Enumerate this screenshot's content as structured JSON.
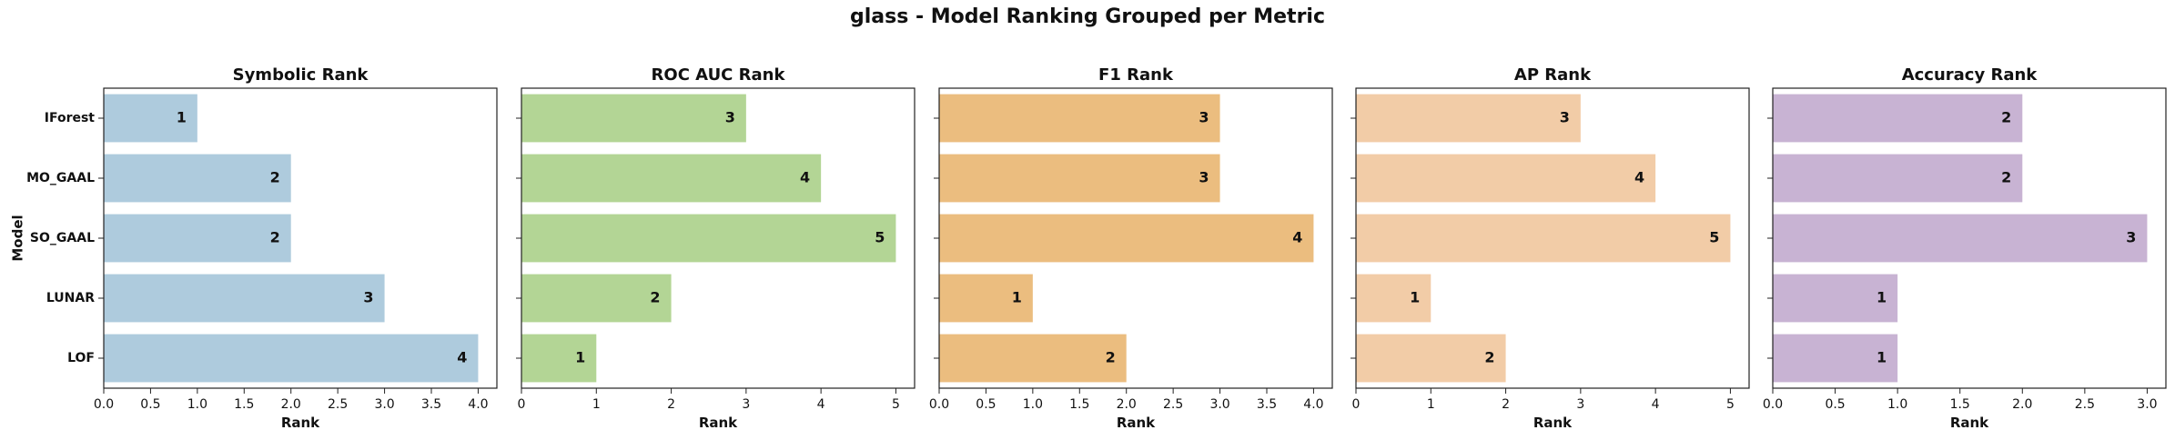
{
  "figure_title": "glass - Model Ranking Grouped per Metric",
  "shared_ylabel": "Model",
  "chart_data": [
    {
      "type": "bar",
      "orientation": "horizontal",
      "title": "Symbolic Rank",
      "xlabel": "Rank",
      "ylabel": "Model",
      "categories": [
        "IForest",
        "MO_GAAL",
        "SO_GAAL",
        "LUNAR",
        "LOF"
      ],
      "values": [
        1,
        2,
        2,
        3,
        4
      ],
      "xlim": [
        0,
        4.2
      ],
      "xticks": [
        "0.0",
        "0.5",
        "1.0",
        "1.5",
        "2.0",
        "2.5",
        "3.0",
        "3.5",
        "4.0"
      ],
      "bar_color": "#aecbdd",
      "show_category_labels": true
    },
    {
      "type": "bar",
      "orientation": "horizontal",
      "title": "ROC AUC Rank",
      "xlabel": "Rank",
      "categories": [
        "IForest",
        "MO_GAAL",
        "SO_GAAL",
        "LUNAR",
        "LOF"
      ],
      "values": [
        3,
        4,
        5,
        2,
        1
      ],
      "xlim": [
        0,
        5.25
      ],
      "xticks": [
        "0",
        "1",
        "2",
        "3",
        "4",
        "5"
      ],
      "bar_color": "#b3d595",
      "show_category_labels": false
    },
    {
      "type": "bar",
      "orientation": "horizontal",
      "title": "F1 Rank",
      "xlabel": "Rank",
      "categories": [
        "IForest",
        "MO_GAAL",
        "SO_GAAL",
        "LUNAR",
        "LOF"
      ],
      "values": [
        3,
        3,
        4,
        1,
        2
      ],
      "xlim": [
        0,
        4.2
      ],
      "xticks": [
        "0.0",
        "0.5",
        "1.0",
        "1.5",
        "2.0",
        "2.5",
        "3.0",
        "3.5",
        "4.0"
      ],
      "bar_color": "#ebbd7f",
      "show_category_labels": false
    },
    {
      "type": "bar",
      "orientation": "horizontal",
      "title": "AP Rank",
      "xlabel": "Rank",
      "categories": [
        "IForest",
        "MO_GAAL",
        "SO_GAAL",
        "LUNAR",
        "LOF"
      ],
      "values": [
        3,
        4,
        5,
        1,
        2
      ],
      "xlim": [
        0,
        5.25
      ],
      "xticks": [
        "0",
        "1",
        "2",
        "3",
        "4",
        "5"
      ],
      "bar_color": "#f2cca7",
      "show_category_labels": false
    },
    {
      "type": "bar",
      "orientation": "horizontal",
      "title": "Accuracy Rank",
      "xlabel": "Rank",
      "categories": [
        "IForest",
        "MO_GAAL",
        "SO_GAAL",
        "LUNAR",
        "LOF"
      ],
      "values": [
        2,
        2,
        3,
        1,
        1
      ],
      "xlim": [
        0,
        3.15
      ],
      "xticks": [
        "0.0",
        "0.5",
        "1.0",
        "1.5",
        "2.0",
        "2.5",
        "3.0"
      ],
      "bar_color": "#c8b3d3",
      "show_category_labels": false
    }
  ]
}
